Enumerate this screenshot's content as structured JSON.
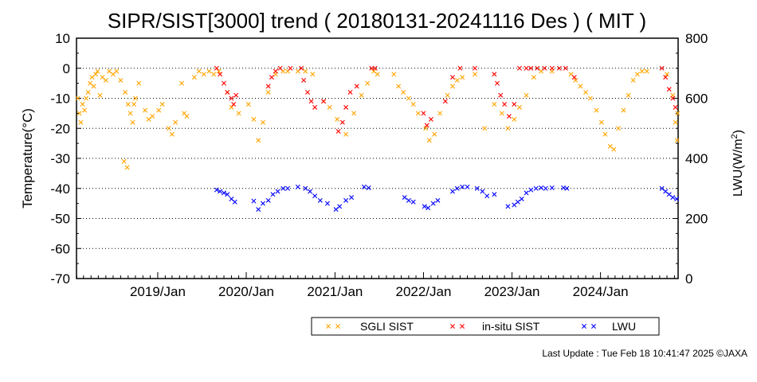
{
  "chart_data": {
    "type": "scatter",
    "title": "SIPR/SIST[3000] trend ( 20180131-20241116 Des ) ( MIT )",
    "ylabel_left": "Temperature(°C)",
    "ylabel_right_prefix": "LWU(W/m",
    "ylabel_right_sup": "2",
    "ylabel_right_suffix": ")",
    "ylim_left": [
      -70,
      10
    ],
    "ylim_right": [
      0,
      800
    ],
    "xlim": [
      "2018-01-31",
      "2024-11-16"
    ],
    "y_ticks_left": [
      10,
      0,
      -10,
      -20,
      -30,
      -40,
      -50,
      -60,
      -70
    ],
    "y_ticks_right": [
      800,
      600,
      400,
      200,
      0
    ],
    "x_ticks": [
      {
        "date": "2019-01-01",
        "label": "2019/Jan"
      },
      {
        "date": "2020-01-01",
        "label": "2020/Jan"
      },
      {
        "date": "2021-01-01",
        "label": "2021/Jan"
      },
      {
        "date": "2022-01-01",
        "label": "2022/Jan"
      },
      {
        "date": "2023-01-01",
        "label": "2023/Jan"
      },
      {
        "date": "2024-01-01",
        "label": "2024/Jan"
      }
    ],
    "grid": "dotted horizontal lines at 0 to -60",
    "legend_position": "bottom-right",
    "series": [
      {
        "name": "SGLI SIST",
        "axis": "left",
        "color": "#ffa500",
        "points": [
          [
            "2018-02-05",
            -10
          ],
          [
            "2018-02-12",
            -15
          ],
          [
            "2018-02-18",
            -18
          ],
          [
            "2018-02-25",
            -12
          ],
          [
            "2018-03-05",
            -14
          ],
          [
            "2018-03-12",
            -10
          ],
          [
            "2018-03-20",
            -8
          ],
          [
            "2018-03-28",
            -5
          ],
          [
            "2018-04-05",
            -3
          ],
          [
            "2018-04-12",
            -6
          ],
          [
            "2018-04-20",
            -2
          ],
          [
            "2018-04-28",
            -1
          ],
          [
            "2018-05-08",
            -9
          ],
          [
            "2018-05-18",
            -3
          ],
          [
            "2018-06-01",
            -4
          ],
          [
            "2018-06-15",
            -1
          ],
          [
            "2018-07-01",
            -2
          ],
          [
            "2018-07-15",
            -1
          ],
          [
            "2018-08-01",
            -4
          ],
          [
            "2018-08-20",
            -8
          ],
          [
            "2018-09-01",
            -12
          ],
          [
            "2018-09-10",
            -15
          ],
          [
            "2018-09-20",
            -18
          ],
          [
            "2018-09-25",
            -12
          ],
          [
            "2018-10-01",
            -10
          ],
          [
            "2018-08-15",
            -31
          ],
          [
            "2018-08-28",
            -33
          ],
          [
            "2018-10-15",
            -5
          ],
          [
            "2018-11-10",
            -14
          ],
          [
            "2018-11-25",
            -17
          ],
          [
            "2018-12-10",
            -16
          ],
          [
            "2019-01-05",
            -14
          ],
          [
            "2019-01-20",
            -12
          ],
          [
            "2019-02-15",
            -20
          ],
          [
            "2019-03-01",
            -22
          ],
          [
            "2019-03-15",
            -18
          ],
          [
            "2019-04-10",
            -5
          ],
          [
            "2019-04-20",
            -15
          ],
          [
            "2019-05-01",
            -16
          ],
          [
            "2019-06-01",
            -3
          ],
          [
            "2019-06-20",
            -1
          ],
          [
            "2019-07-10",
            -2
          ],
          [
            "2019-08-01",
            -1
          ],
          [
            "2019-08-20",
            -2
          ],
          [
            "2019-09-10",
            -1
          ],
          [
            "2019-10-15",
            -8
          ],
          [
            "2019-11-01",
            -13
          ],
          [
            "2019-12-01",
            -15
          ],
          [
            "2020-01-10",
            -12
          ],
          [
            "2020-02-01",
            -17
          ],
          [
            "2020-02-20",
            -24
          ],
          [
            "2020-03-10",
            -18
          ],
          [
            "2020-04-01",
            -8
          ],
          [
            "2020-05-01",
            -2
          ],
          [
            "2020-06-01",
            -1
          ],
          [
            "2020-06-20",
            -1
          ],
          [
            "2020-08-01",
            -1
          ],
          [
            "2020-09-01",
            -1
          ],
          [
            "2020-10-01",
            -2
          ],
          [
            "2020-11-15",
            -11
          ],
          [
            "2020-12-10",
            -13
          ],
          [
            "2021-01-10",
            -17
          ],
          [
            "2021-02-15",
            -22
          ],
          [
            "2021-03-20",
            -15
          ],
          [
            "2021-04-20",
            -9
          ],
          [
            "2021-05-15",
            -5
          ],
          [
            "2021-06-10",
            -1
          ],
          [
            "2021-06-25",
            -2
          ],
          [
            "2021-09-01",
            -2
          ],
          [
            "2021-09-20",
            -6
          ],
          [
            "2021-10-10",
            -8
          ],
          [
            "2021-11-01",
            -10
          ],
          [
            "2021-11-20",
            -12
          ],
          [
            "2021-12-10",
            -15
          ],
          [
            "2022-01-10",
            -20
          ],
          [
            "2022-01-25",
            -24
          ],
          [
            "2022-02-15",
            -22
          ],
          [
            "2022-03-10",
            -15
          ],
          [
            "2022-04-10",
            -9
          ],
          [
            "2022-05-01",
            -6
          ],
          [
            "2022-05-20",
            -4
          ],
          [
            "2022-06-10",
            -3
          ],
          [
            "2022-08-01",
            -2
          ],
          [
            "2022-09-10",
            -20
          ],
          [
            "2022-10-20",
            -12
          ],
          [
            "2022-11-20",
            -15
          ],
          [
            "2022-12-15",
            -20
          ],
          [
            "2023-01-10",
            -17
          ],
          [
            "2023-02-01",
            -13
          ],
          [
            "2023-03-01",
            -9
          ],
          [
            "2023-04-01",
            -3
          ],
          [
            "2023-05-01",
            -1
          ],
          [
            "2023-06-15",
            -1
          ],
          [
            "2023-09-01",
            -2
          ],
          [
            "2023-09-20",
            -4
          ],
          [
            "2023-10-10",
            -6
          ],
          [
            "2023-11-01",
            -8
          ],
          [
            "2023-11-20",
            -10
          ],
          [
            "2023-12-15",
            -14
          ],
          [
            "2024-01-05",
            -18
          ],
          [
            "2024-01-20",
            -22
          ],
          [
            "2024-02-10",
            -26
          ],
          [
            "2024-02-25",
            -27
          ],
          [
            "2024-03-15",
            -20
          ],
          [
            "2024-04-05",
            -14
          ],
          [
            "2024-04-25",
            -9
          ],
          [
            "2024-05-15",
            -4
          ],
          [
            "2024-06-01",
            -2
          ],
          [
            "2024-06-20",
            -1
          ],
          [
            "2024-07-10",
            -1
          ],
          [
            "2024-10-01",
            -2
          ],
          [
            "2024-10-25",
            -9
          ],
          [
            "2024-11-05",
            -18
          ],
          [
            "2024-11-12",
            -24
          ],
          [
            "2024-11-14",
            -15
          ]
        ]
      },
      {
        "name": "in-situ SIST",
        "axis": "left",
        "color": "#ff0000",
        "points": [
          [
            "2019-09-01",
            0
          ],
          [
            "2019-09-15",
            -2
          ],
          [
            "2019-10-01",
            -5
          ],
          [
            "2019-10-15",
            -8
          ],
          [
            "2019-11-01",
            -10
          ],
          [
            "2019-11-10",
            -12
          ],
          [
            "2019-11-20",
            -9
          ],
          [
            "2020-04-01",
            -6
          ],
          [
            "2020-04-15",
            -3
          ],
          [
            "2020-05-01",
            -1
          ],
          [
            "2020-05-20",
            0
          ],
          [
            "2020-07-01",
            0
          ],
          [
            "2020-08-15",
            0
          ],
          [
            "2020-08-25",
            -4
          ],
          [
            "2020-09-10",
            -8
          ],
          [
            "2020-09-25",
            -11
          ],
          [
            "2020-10-10",
            -13
          ],
          [
            "2020-11-15",
            -11
          ],
          [
            "2021-01-15",
            -21
          ],
          [
            "2021-02-01",
            -18
          ],
          [
            "2021-02-15",
            -13
          ],
          [
            "2021-03-05",
            -8
          ],
          [
            "2021-04-01",
            -6
          ],
          [
            "2021-06-01",
            0
          ],
          [
            "2021-06-15",
            0
          ],
          [
            "2022-01-01",
            -15
          ],
          [
            "2022-01-15",
            -19
          ],
          [
            "2022-02-01",
            -17
          ],
          [
            "2022-04-01",
            -11
          ],
          [
            "2022-05-01",
            -3
          ],
          [
            "2022-06-01",
            0
          ],
          [
            "2022-08-01",
            0
          ],
          [
            "2022-10-20",
            -2
          ],
          [
            "2022-11-01",
            -5
          ],
          [
            "2022-11-15",
            -9
          ],
          [
            "2022-12-01",
            -12
          ],
          [
            "2022-12-20",
            -16
          ],
          [
            "2023-01-10",
            -12
          ],
          [
            "2023-02-01",
            0
          ],
          [
            "2023-03-01",
            0
          ],
          [
            "2023-03-20",
            0
          ],
          [
            "2023-04-15",
            0
          ],
          [
            "2023-05-15",
            0
          ],
          [
            "2023-06-15",
            0
          ],
          [
            "2023-07-15",
            0
          ],
          [
            "2023-08-10",
            0
          ],
          [
            "2023-09-15",
            -3
          ],
          [
            "2024-09-10",
            0
          ],
          [
            "2024-09-25",
            -3
          ],
          [
            "2024-10-10",
            -7
          ],
          [
            "2024-10-25",
            -10
          ],
          [
            "2024-11-05",
            -13
          ]
        ]
      },
      {
        "name": "LWU",
        "axis": "right",
        "color": "#0000ff",
        "points": [
          [
            "2019-09-01",
            295
          ],
          [
            "2019-09-15",
            290
          ],
          [
            "2019-10-01",
            285
          ],
          [
            "2019-10-15",
            280
          ],
          [
            "2019-11-01",
            265
          ],
          [
            "2019-11-15",
            255
          ],
          [
            "2020-02-01",
            258
          ],
          [
            "2020-02-20",
            230
          ],
          [
            "2020-03-10",
            250
          ],
          [
            "2020-04-01",
            260
          ],
          [
            "2020-04-20",
            280
          ],
          [
            "2020-05-10",
            290
          ],
          [
            "2020-06-01",
            300
          ],
          [
            "2020-06-20",
            300
          ],
          [
            "2020-08-01",
            305
          ],
          [
            "2020-09-01",
            300
          ],
          [
            "2020-09-20",
            290
          ],
          [
            "2020-10-10",
            275
          ],
          [
            "2020-11-01",
            260
          ],
          [
            "2020-12-01",
            250
          ],
          [
            "2021-01-05",
            230
          ],
          [
            "2021-01-20",
            240
          ],
          [
            "2021-02-15",
            260
          ],
          [
            "2021-03-10",
            270
          ],
          [
            "2021-05-01",
            305
          ],
          [
            "2021-05-20",
            302
          ],
          [
            "2021-10-15",
            270
          ],
          [
            "2021-11-01",
            260
          ],
          [
            "2021-11-20",
            255
          ],
          [
            "2022-01-05",
            240
          ],
          [
            "2022-01-20",
            235
          ],
          [
            "2022-02-10",
            250
          ],
          [
            "2022-03-01",
            260
          ],
          [
            "2022-05-01",
            290
          ],
          [
            "2022-05-20",
            300
          ],
          [
            "2022-06-10",
            305
          ],
          [
            "2022-07-01",
            305
          ],
          [
            "2022-08-10",
            300
          ],
          [
            "2022-09-01",
            290
          ],
          [
            "2022-09-20",
            275
          ],
          [
            "2022-10-20",
            280
          ],
          [
            "2022-12-15",
            240
          ],
          [
            "2023-01-10",
            245
          ],
          [
            "2023-01-25",
            255
          ],
          [
            "2023-02-10",
            265
          ],
          [
            "2023-03-01",
            285
          ],
          [
            "2023-03-20",
            295
          ],
          [
            "2023-04-10",
            300
          ],
          [
            "2023-05-01",
            302
          ],
          [
            "2023-05-20",
            300
          ],
          [
            "2023-06-15",
            302
          ],
          [
            "2023-08-01",
            302
          ],
          [
            "2023-08-15",
            300
          ],
          [
            "2024-09-10",
            300
          ],
          [
            "2024-09-25",
            290
          ],
          [
            "2024-10-10",
            280
          ],
          [
            "2024-10-25",
            270
          ],
          [
            "2024-11-10",
            265
          ]
        ]
      }
    ]
  },
  "footer": {
    "last_update": "Last Update : Tue Feb 18 10:41:47 2025  ©JAXA"
  }
}
